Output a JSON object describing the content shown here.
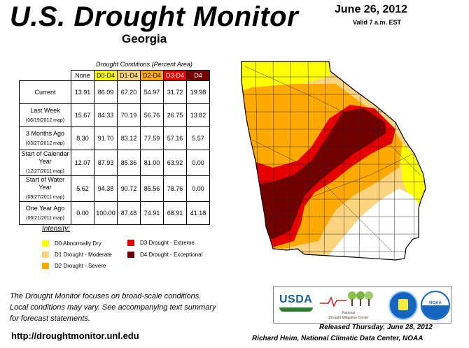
{
  "header": {
    "title": "U.S. Drought Monitor",
    "region": "Georgia",
    "date": "June 26, 2012",
    "valid": "Valid 7 a.m. EST"
  },
  "table": {
    "caption": "Drought Conditions (Percent Area)",
    "columns": [
      "None",
      "D0-D4",
      "D1-D4",
      "D2-D4",
      "D3-D4",
      "D4"
    ],
    "column_colors": [
      "#ffffff",
      "#ffff00",
      "#fcd37f",
      "#ffaa00",
      "#e60000",
      "#730000"
    ],
    "column_text_colors": [
      "#000000",
      "#000000",
      "#000000",
      "#000000",
      "#ffffff",
      "#ffffff"
    ],
    "rows": [
      {
        "label": "Current",
        "sub": "",
        "values": [
          "13.91",
          "86.09",
          "67.20",
          "54.97",
          "31.72",
          "19.98"
        ]
      },
      {
        "label": "Last Week",
        "sub": "(06/19/2012 map)",
        "values": [
          "15.67",
          "84.33",
          "70.19",
          "56.76",
          "26.75",
          "13.82"
        ]
      },
      {
        "label": "3 Months Ago",
        "sub": "(03/27/2012 map)",
        "values": [
          "8.30",
          "91.70",
          "83.12",
          "77.59",
          "57.16",
          "5.57"
        ]
      },
      {
        "label": "Start of Calendar Year",
        "sub": "(12/27/2011 map)",
        "values": [
          "12.07",
          "87.93",
          "85.36",
          "81.00",
          "63.92",
          "0.00"
        ]
      },
      {
        "label": "Start of Water Year",
        "sub": "(09/27/2011 map)",
        "values": [
          "5.62",
          "94.38",
          "90.72",
          "85.56",
          "78.76",
          "0.00"
        ]
      },
      {
        "label": "One Year Ago",
        "sub": "(06/21/2011 map)",
        "values": [
          "0.00",
          "100.00",
          "87.48",
          "74.91",
          "68.91",
          "41.18"
        ]
      }
    ]
  },
  "legend": {
    "title": "Intensity:",
    "items": [
      {
        "label": "D0 Abnormally Dry",
        "color": "#ffff00"
      },
      {
        "label": "D1 Drought - Moderate",
        "color": "#fcd37f"
      },
      {
        "label": "D2 Drought - Severe",
        "color": "#ffaa00"
      },
      {
        "label": "D3 Drought - Extreme",
        "color": "#e60000"
      },
      {
        "label": "D4 Drought - Exceptional",
        "color": "#730000"
      }
    ]
  },
  "footer": {
    "note": "The Drought Monitor focuses on broad-scale conditions. Local conditions may vary. See accompanying text summary for forecast statements.",
    "url": "http://droughtmonitor.unl.edu",
    "released": "Released Thursday, June 28, 2012",
    "author": "Richard Heim, National Climatic Data Center, NOAA"
  },
  "logos": {
    "usda": "USDA",
    "ndmc_line1": "National",
    "ndmc_line2": "Drought Mitigation Center",
    "noaa": "NOAA"
  },
  "map": {
    "state": "Georgia",
    "colors": {
      "none": "#ffffff",
      "d0": "#ffff00",
      "d1": "#fcd37f",
      "d2": "#ffaa00",
      "d3": "#e60000",
      "d4": "#730000"
    }
  }
}
